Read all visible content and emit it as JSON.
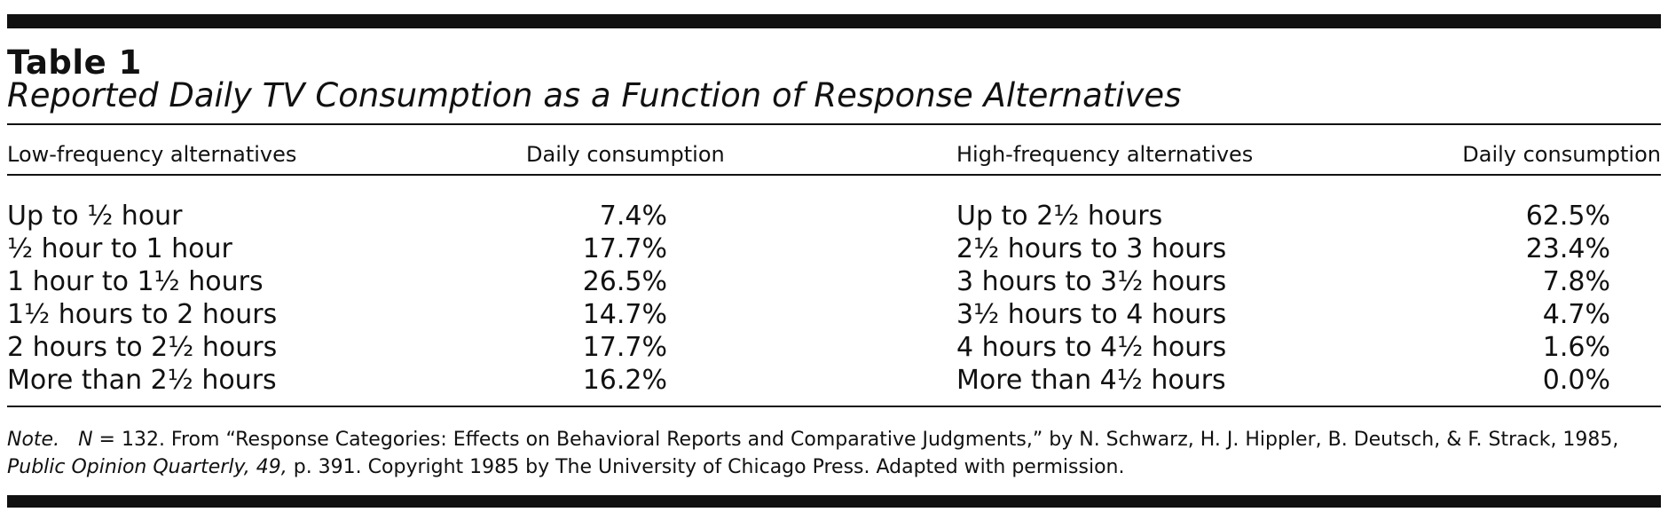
{
  "table": {
    "label": "Table 1",
    "title": "Reported Daily TV Consumption as a Function of Response Alternatives",
    "headers": [
      "Low-frequency alternatives",
      "Daily consumption",
      "High-frequency alternatives",
      "Daily consumption"
    ],
    "rows": [
      {
        "low": "Up to ½ hour",
        "low_pct": "7.4%",
        "high": "Up to 2½ hours",
        "high_pct": "62.5%"
      },
      {
        "low": "½ hour to 1 hour",
        "low_pct": "17.7%",
        "high": "2½ hours to 3 hours",
        "high_pct": "23.4%"
      },
      {
        "low": "1 hour to 1½ hours",
        "low_pct": "26.5%",
        "high": "3 hours to 3½ hours",
        "high_pct": "7.8%"
      },
      {
        "low": "1½ hours to 2 hours",
        "low_pct": "14.7%",
        "high": "3½ hours to 4 hours",
        "high_pct": "4.7%"
      },
      {
        "low": "2 hours to 2½ hours",
        "low_pct": "17.7%",
        "high": "4 hours to 4½ hours",
        "high_pct": "1.6%"
      },
      {
        "low": "More than 2½ hours",
        "low_pct": "16.2%",
        "high": "More than 4½ hours",
        "high_pct": "0.0%"
      }
    ]
  },
  "note": {
    "label": "Note.",
    "n": "N",
    "eq": " = 132. From ",
    "article": "“Response Categories: Effects on Behavioral Reports and Comparative Judgments,” by N. Schwarz, H. J. Hippler, B. Deutsch, & F. Strack, 1985, ",
    "journal": "Public Opinion Quarterly, 49,",
    "rest": " p. 391. Copyright 1985 by The University of Chicago Press. Adapted with permission."
  }
}
